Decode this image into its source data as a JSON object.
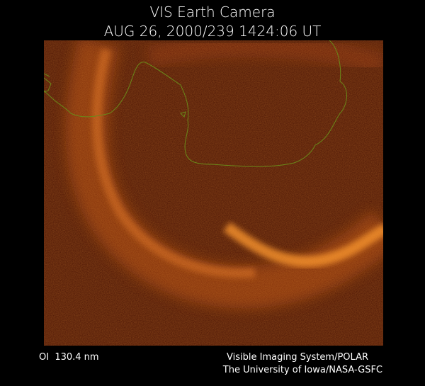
{
  "header": {
    "title": "VIS Earth Camera",
    "timestamp": "AUG 26, 2000/239 1424:06 UT"
  },
  "footer": {
    "filter": "OI  130.4 nm",
    "instrument": "Visible Imaging System/POLAR",
    "credit": "The University of Iowa/NASA-GSFC"
  }
}
